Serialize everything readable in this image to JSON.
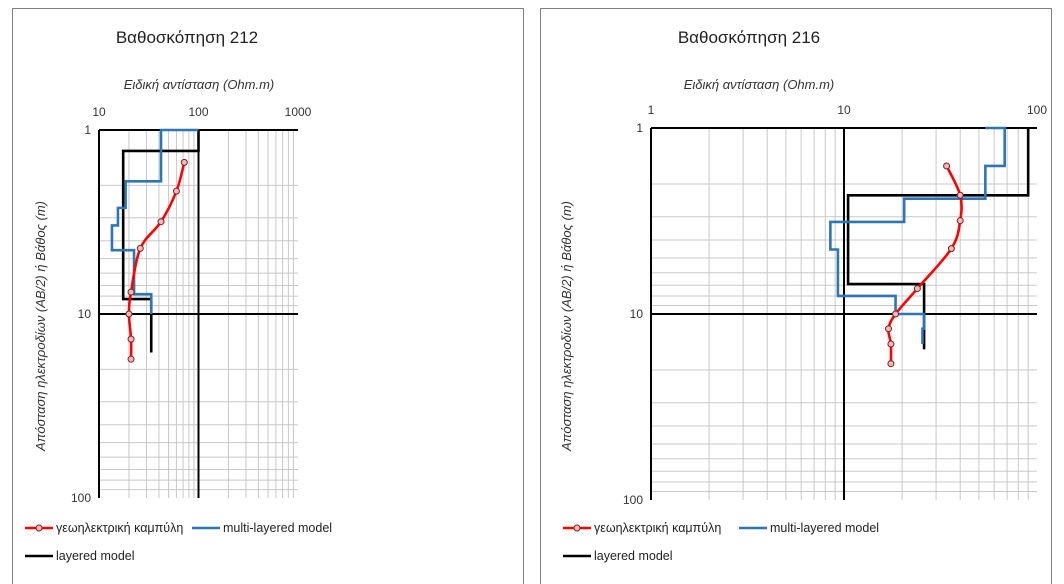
{
  "chart_data": [
    {
      "type": "line",
      "title": "Βαθοσκόπηση 212",
      "xlabel": "Ειδική αντίσταση (Ohm.m)",
      "ylabel": "Απόσταση ηλεκτροδίων (AB/2) ή Βάθος (m)",
      "xscale": "log",
      "yscale": "log",
      "y_inverted": true,
      "xlim": [
        10,
        1000
      ],
      "ylim": [
        1,
        100
      ],
      "xticks": [
        "10",
        "100",
        "1000"
      ],
      "yticks": [
        "1",
        "10",
        "100"
      ],
      "legend_position": "bottom",
      "series": [
        {
          "name": "γεωηλεκτρική καμπύλη",
          "color": "#ff0000",
          "marker": "circle",
          "points": [
            [
              72,
              1.5
            ],
            [
              60,
              2.15
            ],
            [
              42,
              3.15
            ],
            [
              26,
              4.4
            ],
            [
              21,
              7.6
            ],
            [
              20,
              10.0
            ],
            [
              21,
              13.7
            ],
            [
              21,
              17.6
            ]
          ]
        },
        {
          "name": "multi-layered model",
          "color": "#2e75b6",
          "points": [
            [
              100,
              1.0
            ],
            [
              42,
              1.0
            ],
            [
              42,
              1.9
            ],
            [
              18.5,
              1.9
            ],
            [
              18.5,
              2.65
            ],
            [
              15.5,
              2.65
            ],
            [
              15.5,
              3.3
            ],
            [
              13.5,
              3.3
            ],
            [
              13.5,
              4.5
            ],
            [
              22.5,
              4.5
            ],
            [
              22.5,
              7.8
            ],
            [
              33.5,
              7.8
            ],
            [
              33.5,
              10.0
            ]
          ]
        },
        {
          "name": "layered model",
          "color": "#000000",
          "points": [
            [
              100,
              1.0
            ],
            [
              100,
              1.3
            ],
            [
              17.5,
              1.3
            ],
            [
              17.5,
              8.3
            ],
            [
              33.5,
              8.3
            ],
            [
              33.5,
              16.2
            ]
          ]
        }
      ]
    },
    {
      "type": "line",
      "title": "Βαθοσκόπηση 216",
      "xlabel": "Ειδική αντίσταση (Ohm.m)",
      "ylabel": "Απόσταση ηλεκτροδίων (AB/2) ή Βάθος (m)",
      "xscale": "log",
      "yscale": "log",
      "y_inverted": true,
      "xlim": [
        1,
        100
      ],
      "ylim": [
        1,
        100
      ],
      "xticks": [
        "1",
        "10",
        "100"
      ],
      "yticks": [
        "1",
        "10",
        "100"
      ],
      "legend_position": "bottom",
      "series": [
        {
          "name": "γεωηλεκτρική καμπύλη",
          "color": "#ff0000",
          "marker": "circle",
          "points": [
            [
              34,
              1.6
            ],
            [
              40,
              2.3
            ],
            [
              40,
              3.15
            ],
            [
              36,
              4.45
            ],
            [
              24,
              7.3
            ],
            [
              18.5,
              10.0
            ],
            [
              17,
              12.0
            ],
            [
              17.5,
              14.5
            ],
            [
              17.5,
              18.5
            ]
          ]
        },
        {
          "name": "multi-layered model",
          "color": "#2e75b6",
          "points": [
            [
              54,
              1.0
            ],
            [
              68,
              1.0
            ],
            [
              68,
              1.6
            ],
            [
              54,
              1.6
            ],
            [
              54,
              2.4
            ],
            [
              20.5,
              2.4
            ],
            [
              20.5,
              3.2
            ],
            [
              8.5,
              3.2
            ],
            [
              8.5,
              4.5
            ],
            [
              9.3,
              4.5
            ],
            [
              9.3,
              8.0
            ],
            [
              18.5,
              8.0
            ],
            [
              18.5,
              10.0
            ],
            [
              26,
              10.0
            ],
            [
              26,
              12.0
            ],
            [
              25.5,
              12.0
            ],
            [
              25.5,
              14.0
            ],
            [
              25.5,
              14.5
            ]
          ]
        },
        {
          "name": "layered model",
          "color": "#000000",
          "points": [
            [
              90,
              1.0
            ],
            [
              90,
              2.3
            ],
            [
              10.5,
              2.3
            ],
            [
              10.5,
              6.9
            ],
            [
              26,
              6.9
            ],
            [
              26,
              15.5
            ]
          ]
        }
      ]
    }
  ]
}
